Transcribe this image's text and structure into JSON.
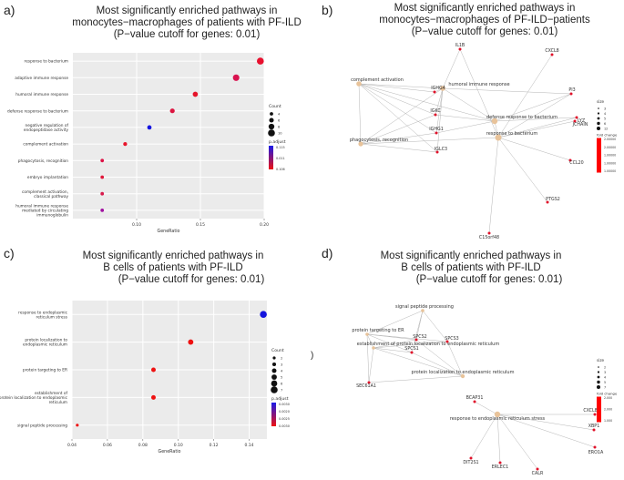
{
  "panels": {
    "a": {
      "letter": "a)",
      "title": [
        "Most significantly enriched pathways in",
        "monocytes−macrophages of patients with PF-ILD",
        "(P−value cutoff for genes: 0.01)"
      ]
    },
    "b": {
      "letter": "b)",
      "title": [
        "Most significantly enriched pathways in",
        "monocytes−macrophages of PF-ILD−patients",
        "(P−value cutoff for genes: 0.01)"
      ]
    },
    "c": {
      "letter": "c)",
      "title": [
        "Most significantly enriched pathways in",
        "B cells of patients with PF-ILD",
        "(P−value cutoff for genes: 0.01)"
      ]
    },
    "d": {
      "letter": "d)",
      "title": [
        "Most significantly enriched pathways in",
        "B cells of patients with PF-ILD",
        "(P−value cutoff for genes: 0.01)"
      ]
    }
  },
  "stray_mark": ")",
  "chart_data": [
    {
      "type": "scatter",
      "panel": "a",
      "xlabel": "GeneRatio",
      "xlim": [
        0.05,
        0.2
      ],
      "xticks": [
        0.1,
        0.15,
        0.2
      ],
      "xtick_labels": [
        "0.10",
        "0.15",
        "0.20"
      ],
      "categories": [
        "response to bacterium",
        "adaptive immune response",
        "humoral immune response",
        "defense response to bacterium",
        "negative regulation of endopeptidase activity",
        "complement activation",
        "phagocytosis, recognition",
        "embryo implantation",
        "complement activation, classical pathway",
        "humoral immune response mediated by circulating immunoglobulin"
      ],
      "x": [
        0.197,
        0.178,
        0.146,
        0.128,
        0.11,
        0.091,
        0.073,
        0.073,
        0.073,
        0.073
      ],
      "count": [
        12,
        11,
        8,
        7,
        6,
        5,
        4,
        4,
        4,
        4
      ],
      "p_adjust_color": [
        "#e8102e",
        "#d8124f",
        "#e5142a",
        "#dc1540",
        "#1414e0",
        "#e8162c",
        "#dd1044",
        "#e0163a",
        "#d81a4c",
        "#a010a0"
      ],
      "legend": {
        "size_title": "Count",
        "size_values": [
          "4",
          "6",
          "8",
          "10"
        ],
        "color_title": "p.adjust",
        "color_values": [
          "0.115",
          "0.011",
          "0.106"
        ],
        "colors": [
          "#1a1ae8",
          "#ee1111"
        ]
      }
    },
    {
      "type": "network",
      "panel": "b",
      "categories": [
        "complement activation",
        "humoral immune response",
        "defense response to bacterium",
        "response to bacterium",
        "phagocytosis, recognition"
      ],
      "genes": [
        "IL1B",
        "CXCL8",
        "IGHG4",
        "IGKC",
        "IGHG1",
        "IGLC3",
        "PI3",
        "LYZ",
        "JCHAIN",
        "CCL20",
        "PTGS2",
        "C15orf48"
      ],
      "legend": {
        "size_title": "size",
        "size_values": [
          "3",
          "4",
          "5",
          "6",
          "12"
        ],
        "color_title": "fold change",
        "color_values": [
          "2.00000",
          "2.00000",
          "1.00000",
          "1.00000",
          "1.00000"
        ],
        "colors": [
          "#ff0000",
          "#ff0000"
        ]
      }
    },
    {
      "type": "scatter",
      "panel": "c",
      "xlabel": "GeneRatio",
      "xlim": [
        0.04,
        0.15
      ],
      "xticks": [
        0.04,
        0.06,
        0.08,
        0.1,
        0.12,
        0.14
      ],
      "xtick_labels": [
        "0.04",
        "0.06",
        "0.08",
        "0.10",
        "0.12",
        "0.14"
      ],
      "categories": [
        "response to endoplasmic reticulum stress",
        "protein localization to endoplasmic reticulum",
        "protein targeting to ER",
        "establishment of protein localization to endoplasmic reticulum",
        "signal peptide processing"
      ],
      "x": [
        0.148,
        0.107,
        0.086,
        0.086,
        0.043
      ],
      "count": [
        7,
        5,
        4,
        4,
        2
      ],
      "p_adjust_color": [
        "#1414dd",
        "#ee1111",
        "#ee1111",
        "#ee1111",
        "#ee1111"
      ],
      "legend": {
        "size_title": "Count",
        "size_values": [
          "2",
          "3",
          "4",
          "5",
          "6",
          "7"
        ],
        "color_title": "p.adjust",
        "color_values": [
          "0.0030",
          "0.0020",
          "0.0025",
          "0.0030"
        ],
        "colors": [
          "#1a1ae8",
          "#ee1111"
        ]
      }
    },
    {
      "type": "network",
      "panel": "d",
      "categories": [
        "signal peptide processing",
        "protein targeting to ER",
        "establishment of protein localization to endoplasmic reticulum",
        "protein localization to endoplasmic reticulum",
        "response to endoplasmic reticulum stress"
      ],
      "genes": [
        "SPCS2",
        "SPCS3",
        "SPCS1",
        "SEC61A1",
        "BCAP31",
        "CXCL8",
        "XBP1",
        "ERO1A",
        "DIT2S1",
        "ERLEC1",
        "CALR"
      ],
      "legend": {
        "size_title": "size",
        "size_values": [
          "2",
          "3",
          "4",
          "5",
          "7"
        ],
        "color_title": "fold change",
        "color_values": [
          "2.000",
          "2.000",
          "1.000"
        ],
        "colors": [
          "#ff0000",
          "#ff0000"
        ]
      }
    }
  ]
}
